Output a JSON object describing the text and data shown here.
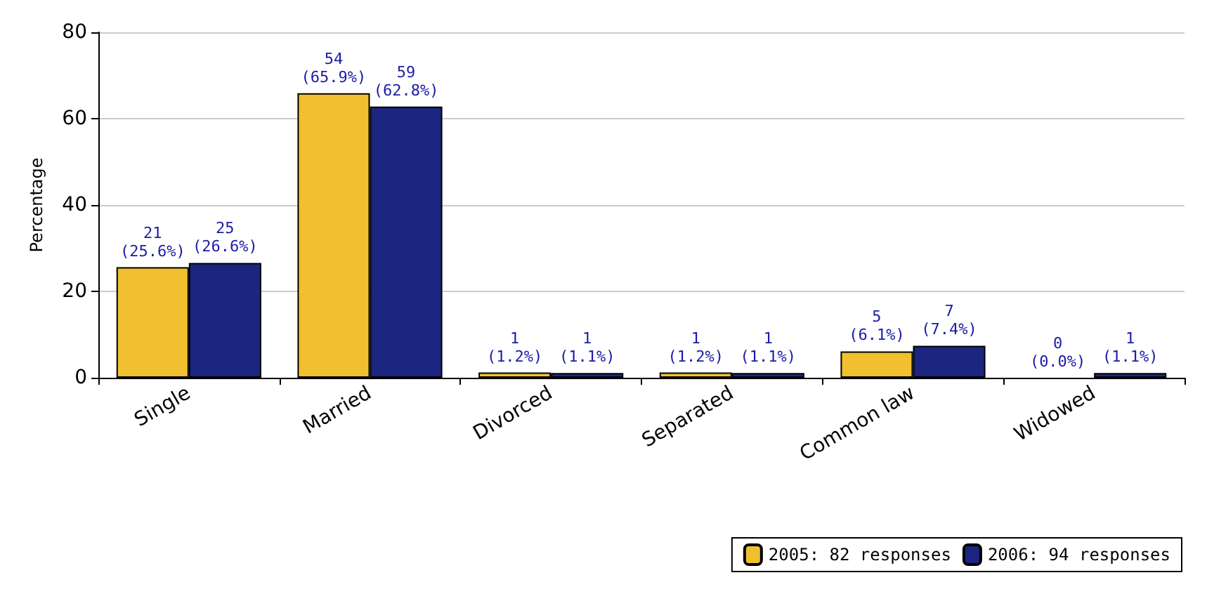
{
  "chart_data": {
    "type": "bar",
    "ylabel": "Percentage",
    "categories": [
      "Single",
      "Married",
      "Divorced",
      "Separated",
      "Common law",
      "Widowed"
    ],
    "series": [
      {
        "name": "2005: 82 responses",
        "color": "#f0c030",
        "values": [
          25.6,
          65.9,
          1.2,
          1.2,
          6.1,
          0.0
        ],
        "value_labels": [
          "21\n(25.6%)",
          "54\n(65.9%)",
          "1\n(1.2%)",
          "1\n(1.2%)",
          "5\n(6.1%)",
          "0\n(0.0%)"
        ]
      },
      {
        "name": "2006: 94 responses",
        "color": "#1c2680",
        "values": [
          26.6,
          62.8,
          1.1,
          1.1,
          7.4,
          1.1
        ],
        "value_labels": [
          "25\n(26.6%)",
          "59\n(62.8%)",
          "1\n(1.1%)",
          "1\n(1.1%)",
          "7\n(7.4%)",
          "1\n(1.1%)"
        ]
      }
    ],
    "ylim": [
      0,
      80
    ],
    "yticks": [
      0,
      20,
      40,
      60,
      80
    ],
    "grid": "y",
    "legend": "bottom right"
  }
}
